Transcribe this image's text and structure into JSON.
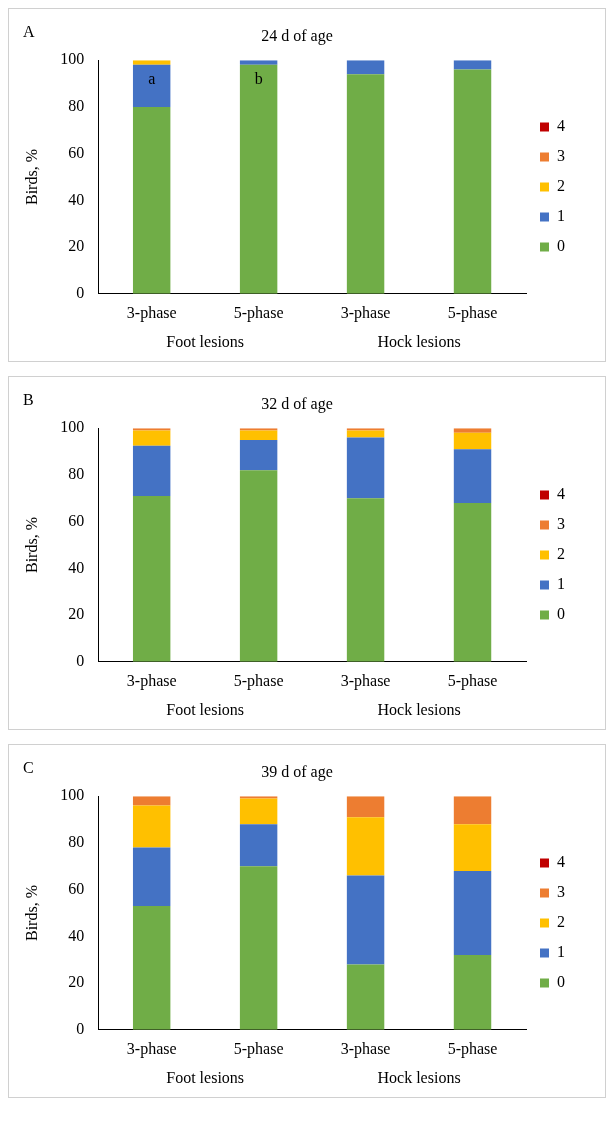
{
  "chart_data": [
    {
      "type": "bar",
      "title": "24 d of age",
      "ylabel": "Birds, %",
      "categories": [
        "3-phase",
        "5-phase",
        "3-phase",
        "5-phase"
      ],
      "stacked": true,
      "legend": "right",
      "ylim": [
        0,
        100
      ],
      "yticks": [
        0,
        20,
        40,
        60,
        80,
        100
      ],
      "grid": false,
      "annotations": [
        "A",
        "Foot lesions",
        "Hock lesions",
        "a",
        "b"
      ],
      "series": [
        {
          "name": "0",
          "color": "#70ad47",
          "values": [
            80,
            98,
            94,
            96
          ]
        },
        {
          "name": "1",
          "color": "#4472c4",
          "values": [
            18,
            2,
            6,
            4
          ]
        },
        {
          "name": "2",
          "color": "#ffc000",
          "values": [
            2,
            0,
            0,
            0
          ]
        },
        {
          "name": "3",
          "color": "#ed7d31",
          "values": [
            0,
            0,
            0,
            0
          ]
        },
        {
          "name": "4",
          "color": "#c00000",
          "values": [
            0,
            0,
            0,
            0
          ]
        }
      ]
    },
    {
      "type": "bar",
      "title": "32 d of age",
      "ylabel": "Birds, %",
      "categories": [
        "3-phase",
        "5-phase",
        "3-phase",
        "5-phase"
      ],
      "stacked": true,
      "legend": "right",
      "ylim": [
        0,
        100
      ],
      "yticks": [
        0,
        20,
        40,
        60,
        80,
        100
      ],
      "grid": false,
      "annotations": [
        "B",
        "Foot lesions",
        "Hock lesions"
      ],
      "series": [
        {
          "name": "0",
          "color": "#70ad47",
          "values": [
            71,
            82,
            70,
            68
          ]
        },
        {
          "name": "1",
          "color": "#4472c4",
          "values": [
            21.5,
            13,
            26,
            23
          ]
        },
        {
          "name": "2",
          "color": "#ffc000",
          "values": [
            6.5,
            4,
            3,
            7
          ]
        },
        {
          "name": "3",
          "color": "#ed7d31",
          "values": [
            1,
            1,
            1,
            2
          ]
        },
        {
          "name": "4",
          "color": "#c00000",
          "values": [
            0,
            0,
            0,
            0
          ]
        }
      ]
    },
    {
      "type": "bar",
      "title": "39 d of age",
      "ylabel": "Birds, %",
      "categories": [
        "3-phase",
        "5-phase",
        "3-phase",
        "5-phase"
      ],
      "stacked": true,
      "legend": "right",
      "ylim": [
        0,
        100
      ],
      "yticks": [
        0,
        20,
        40,
        60,
        80,
        100
      ],
      "grid": false,
      "annotations": [
        "C",
        "Foot lesions",
        "Hock lesions"
      ],
      "series": [
        {
          "name": "0",
          "color": "#70ad47",
          "values": [
            53,
            70,
            28,
            32
          ]
        },
        {
          "name": "1",
          "color": "#4472c4",
          "values": [
            25,
            18,
            38,
            36
          ]
        },
        {
          "name": "2",
          "color": "#ffc000",
          "values": [
            18,
            11,
            25,
            20
          ]
        },
        {
          "name": "3",
          "color": "#ed7d31",
          "values": [
            4,
            1,
            9,
            12
          ]
        },
        {
          "name": "4",
          "color": "#c00000",
          "values": [
            0,
            0,
            0,
            0
          ]
        }
      ]
    }
  ]
}
